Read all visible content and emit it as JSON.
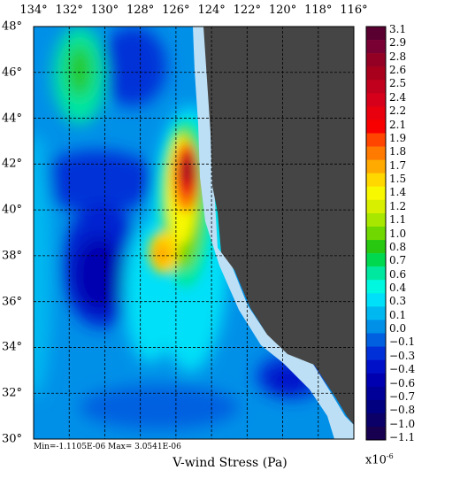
{
  "map": {
    "title": "V-wind Stress (Pa)",
    "stats_text": "Min=-1.1105E-06   Max= 3.0541E-06",
    "scale_base": "x10",
    "scale_exp": "-6",
    "lon_labels": [
      "134°",
      "132°",
      "130°",
      "128°",
      "126°",
      "124°",
      "122°",
      "120°",
      "118°",
      "116°"
    ],
    "lat_labels": [
      "48°",
      "46°",
      "44°",
      "42°",
      "40°",
      "38°",
      "36°",
      "34°",
      "32°",
      "30°"
    ],
    "lon_range": [
      134,
      116
    ],
    "lat_range": [
      30,
      48
    ],
    "grid": "dashed"
  },
  "colorbar": {
    "labels": [
      "3.1",
      "2.9",
      "2.8",
      "2.6",
      "2.5",
      "2.4",
      "2.2",
      "2.1",
      "1.9",
      "1.8",
      "1.7",
      "1.5",
      "1.4",
      "1.2",
      "1.1",
      "1.0",
      "0.8",
      "0.7",
      "0.6",
      "0.4",
      "0.3",
      "0.1",
      "0.0",
      "−0.1",
      "−0.3",
      "−0.4",
      "−0.6",
      "−0.7",
      "−0.8",
      "−1.0",
      "−1.1"
    ],
    "colors": [
      "#5a0030",
      "#780033",
      "#930024",
      "#a8001c",
      "#c0001c",
      "#d6001a",
      "#e8000e",
      "#f80000",
      "#ff4500",
      "#ff7a00",
      "#ffaa00",
      "#ffd800",
      "#f8f800",
      "#d8f000",
      "#a8e800",
      "#70d800",
      "#28c810",
      "#00d850",
      "#00e8a0",
      "#00f8e0",
      "#00e0f8",
      "#00b8f0",
      "#0090e8",
      "#0060e0",
      "#0030d8",
      "#0010c8",
      "#0000b0",
      "#000098",
      "#000080",
      "#0a0068",
      "#180050"
    ]
  },
  "colors": {
    "land": "#454545",
    "coast": "#bcdff5"
  }
}
